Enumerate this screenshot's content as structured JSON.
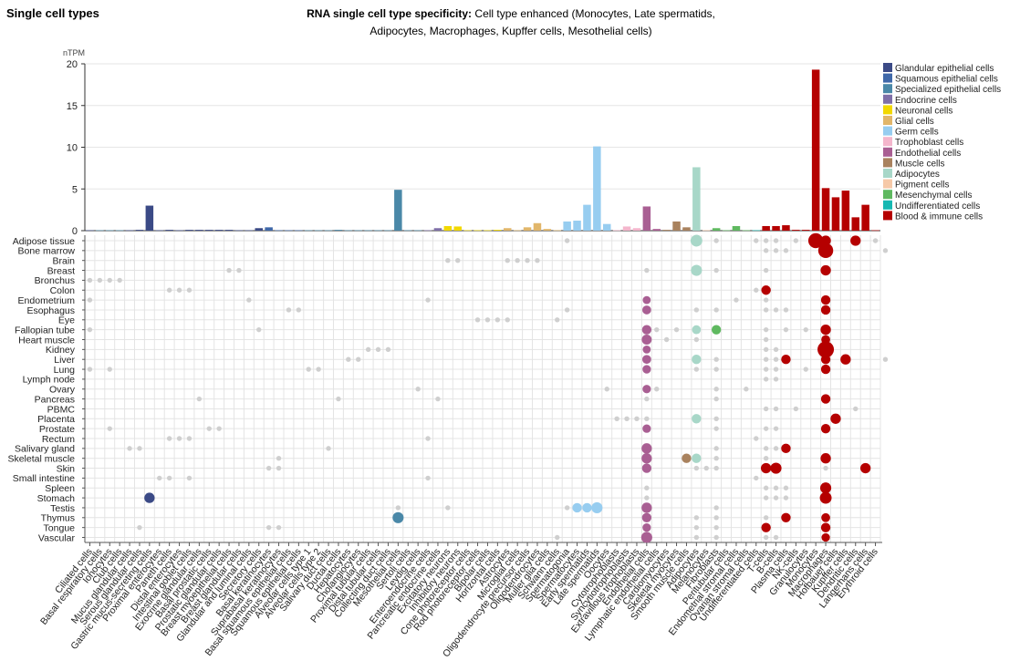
{
  "section_title": "Single cell types",
  "chart_title_bold": "RNA single cell type specificity:",
  "chart_title_rest": " Cell type enhanced (Monocytes, Late spermatids, Adipocytes, Macrophages, Kupffer cells, Mesothelial cells)",
  "chart_data": {
    "type": "bar",
    "ylabel": "nTPM",
    "ylim": [
      0,
      20
    ],
    "yticks": [
      0,
      5,
      10,
      15,
      20
    ],
    "grid": true,
    "legend_position": "right",
    "legend": [
      {
        "name": "Glandular epithelial cells",
        "color": "#3b4a86"
      },
      {
        "name": "Squamous epithelial cells",
        "color": "#3f68a9"
      },
      {
        "name": "Specialized epithelial cells",
        "color": "#4a88a8"
      },
      {
        "name": "Endocrine cells",
        "color": "#7f6fa8"
      },
      {
        "name": "Neuronal cells",
        "color": "#f2d800"
      },
      {
        "name": "Glial cells",
        "color": "#e1b66a"
      },
      {
        "name": "Germ cells",
        "color": "#97cdf0"
      },
      {
        "name": "Trophoblast cells",
        "color": "#f4b6cc"
      },
      {
        "name": "Endothelial cells",
        "color": "#a95f93"
      },
      {
        "name": "Muscle cells",
        "color": "#a9825e"
      },
      {
        "name": "Adipocytes",
        "color": "#a8d7c8"
      },
      {
        "name": "Pigment cells",
        "color": "#f6c9a8"
      },
      {
        "name": "Mesenchymal cells",
        "color": "#5fb960"
      },
      {
        "name": "Undifferentiated cells",
        "color": "#16b8b2"
      },
      {
        "name": "Blood & immune cells",
        "color": "#b50000"
      }
    ],
    "categories": [
      "Ciliated cells",
      "Basal respiratory cells",
      "Ionocytes",
      "Club cells",
      "Mucus glandular cells",
      "Serous glandular cells",
      "Gastric mucus-secreting cells",
      "Proximal enterocytes",
      "Paneth cells",
      "Distal enterocytes",
      "Intestinal goblet cells",
      "Exocrine glandular cells",
      "Basal prostatic cells",
      "Prostatic glandular cells",
      "Breast myoepithelial cells",
      "Breast glandular cells",
      "Glandular and luminal cells",
      "Secretory cells",
      "Basal keratinocytes",
      "Suprabasal keratinocytes",
      "Basal squamous epithelial cells",
      "Squamous epithelial cells",
      "Alveolar cells type 1",
      "Alveolar cells type 2",
      "Salivary duct cells",
      "Ductal cells",
      "Hepatocytes",
      "Cholangiocytes",
      "Proximal tubular cells",
      "Distal tubular cells",
      "Collecting duct cells",
      "Mesothelial cells",
      "Sertoli cells",
      "Leydig cells",
      "Enteroendocrine cells",
      "Pancreatic endocrine cells",
      "Excitatory neurons",
      "Inhibitory neurons",
      "Cone photoreceptor cells",
      "Rod photoreceptor cells",
      "Bipolar cells",
      "Horizontal cells",
      "Astrocytes",
      "Microglial cells",
      "Oligodendrocyte precursor cells",
      "Oligodendrocytes",
      "Muller glia cells",
      "Schwann cells",
      "Spermatogonia",
      "Spermatocytes",
      "Early spermatids",
      "Late spermatids",
      "Oocytes",
      "Cytotrophoblasts",
      "Syncytiotrophoblasts",
      "Extravillous trophoblasts",
      "Endothelial cells",
      "Lymphatic endothelial cells",
      "Cardiomyocytes",
      "Skeletal myocytes",
      "Smooth muscle cells",
      "Adipocytes",
      "Melanocytes",
      "Fibroblasts",
      "Peritubular cells",
      "Endometrial stromal cells",
      "Ovarian stromal cells",
      "Undifferentiated cells",
      "T-cells",
      "B-cells",
      "Plasma cells",
      "NK-cells",
      "Granulocytes",
      "Monocytes",
      "Macrophages",
      "Hofbauer cells",
      "Kupffer cells",
      "Dendritic cells",
      "Langerhans cells",
      "Erythroid cells"
    ],
    "category_groups": [
      "Glandular epithelial cells",
      "Specialized epithelial cells",
      "Specialized epithelial cells",
      "Specialized epithelial cells",
      "Glandular epithelial cells",
      "Glandular epithelial cells",
      "Glandular epithelial cells",
      "Glandular epithelial cells",
      "Glandular epithelial cells",
      "Glandular epithelial cells",
      "Glandular epithelial cells",
      "Glandular epithelial cells",
      "Glandular epithelial cells",
      "Glandular epithelial cells",
      "Glandular epithelial cells",
      "Glandular epithelial cells",
      "Glandular epithelial cells",
      "Glandular epithelial cells",
      "Squamous epithelial cells",
      "Squamous epithelial cells",
      "Squamous epithelial cells",
      "Squamous epithelial cells",
      "Specialized epithelial cells",
      "Specialized epithelial cells",
      "Specialized epithelial cells",
      "Specialized epithelial cells",
      "Specialized epithelial cells",
      "Specialized epithelial cells",
      "Specialized epithelial cells",
      "Specialized epithelial cells",
      "Specialized epithelial cells",
      "Specialized epithelial cells",
      "Specialized epithelial cells",
      "Specialized epithelial cells",
      "Endocrine cells",
      "Endocrine cells",
      "Neuronal cells",
      "Neuronal cells",
      "Neuronal cells",
      "Neuronal cells",
      "Neuronal cells",
      "Neuronal cells",
      "Glial cells",
      "Glial cells",
      "Glial cells",
      "Glial cells",
      "Glial cells",
      "Glial cells",
      "Germ cells",
      "Germ cells",
      "Germ cells",
      "Germ cells",
      "Germ cells",
      "Trophoblast cells",
      "Trophoblast cells",
      "Trophoblast cells",
      "Endothelial cells",
      "Endothelial cells",
      "Muscle cells",
      "Muscle cells",
      "Muscle cells",
      "Adipocytes",
      "Pigment cells",
      "Mesenchymal cells",
      "Mesenchymal cells",
      "Mesenchymal cells",
      "Mesenchymal cells",
      "Undifferentiated cells",
      "Blood & immune cells",
      "Blood & immune cells",
      "Blood & immune cells",
      "Blood & immune cells",
      "Blood & immune cells",
      "Blood & immune cells",
      "Blood & immune cells",
      "Blood & immune cells",
      "Blood & immune cells",
      "Blood & immune cells",
      "Blood & immune cells",
      "Blood & immune cells"
    ],
    "values": [
      0.05,
      0.05,
      0.05,
      0.05,
      0.05,
      0.1,
      3,
      0.05,
      0.1,
      0.05,
      0.1,
      0.1,
      0.1,
      0.1,
      0.1,
      0.05,
      0.05,
      0.3,
      0.4,
      0.05,
      0.05,
      0.05,
      0.05,
      0.05,
      0.05,
      0.1,
      0.05,
      0.05,
      0.05,
      0.05,
      0.05,
      4.9,
      0.05,
      0.05,
      0.05,
      0.3,
      0.55,
      0.5,
      0.05,
      0.05,
      0.05,
      0.1,
      0.3,
      0.05,
      0.4,
      0.9,
      0.2,
      0.05,
      1.1,
      1.2,
      3.1,
      10.1,
      0.8,
      0.05,
      0.5,
      0.3,
      2.9,
      0.2,
      0.1,
      1.1,
      0.4,
      7.6,
      0.05,
      0.3,
      0.05,
      0.55,
      0.05,
      0.05,
      0.55,
      0.55,
      0.65,
      0.1,
      0.1,
      19.3,
      5.1,
      4,
      4.8,
      1.6,
      3.1,
      0.05
    ],
    "tissues": [
      "Adipose tissue",
      "Bone marrow",
      "Brain",
      "Breast",
      "Bronchus",
      "Colon",
      "Endometrium",
      "Esophagus",
      "Eye",
      "Fallopian tube",
      "Heart muscle",
      "Kidney",
      "Liver",
      "Lung",
      "Lymph node",
      "Ovary",
      "Pancreas",
      "PBMC",
      "Placenta",
      "Prostate",
      "Rectum",
      "Salivary gland",
      "Skeletal muscle",
      "Skin",
      "Small intestine",
      "Spleen",
      "Stomach",
      "Testis",
      "Thymus",
      "Tongue",
      "Vascular"
    ],
    "dot_matrix": [
      [
        [
          48,
          0.3
        ],
        [
          61,
          3
        ],
        [
          63,
          0.3
        ],
        [
          67,
          0.3
        ],
        [
          68,
          0.3
        ],
        [
          69,
          0.3
        ],
        [
          71,
          0.3
        ],
        [
          73,
          6
        ],
        [
          74,
          2
        ],
        [
          77,
          2
        ],
        [
          79,
          0.3
        ]
      ],
      [
        [
          68,
          0.3
        ],
        [
          69,
          0.3
        ],
        [
          70,
          0.3
        ],
        [
          74,
          6
        ],
        [
          80,
          0.3
        ]
      ],
      [
        [
          36,
          0.3
        ],
        [
          37,
          0.3
        ],
        [
          42,
          0.3
        ],
        [
          43,
          0.3
        ],
        [
          44,
          0.3
        ],
        [
          45,
          0.3
        ]
      ],
      [
        [
          14,
          0.3
        ],
        [
          15,
          0.3
        ],
        [
          56,
          0.3
        ],
        [
          61,
          2.5
        ],
        [
          63,
          0.3
        ],
        [
          68,
          0.3
        ],
        [
          74,
          2
        ]
      ],
      [
        [
          0,
          0.3
        ],
        [
          1,
          0.3
        ],
        [
          2,
          0.3
        ],
        [
          3,
          0.3
        ]
      ],
      [
        [
          8,
          0.3
        ],
        [
          9,
          0.3
        ],
        [
          10,
          0.3
        ],
        [
          67,
          0.3
        ],
        [
          68,
          1.5
        ]
      ],
      [
        [
          0,
          0.3
        ],
        [
          16,
          0.3
        ],
        [
          34,
          0.3
        ],
        [
          56,
          0.8
        ],
        [
          65,
          0.3
        ],
        [
          68,
          0.3
        ],
        [
          74,
          1.5
        ]
      ],
      [
        [
          20,
          0.3
        ],
        [
          21,
          0.3
        ],
        [
          48,
          0.3
        ],
        [
          56,
          1.2
        ],
        [
          61,
          0.3
        ],
        [
          63,
          0.3
        ],
        [
          68,
          0.3
        ],
        [
          69,
          0.3
        ],
        [
          70,
          0.3
        ],
        [
          74,
          1.5
        ]
      ],
      [
        [
          39,
          0.3
        ],
        [
          40,
          0.3
        ],
        [
          41,
          0.3
        ],
        [
          42,
          0.3
        ],
        [
          47,
          0.3
        ]
      ],
      [
        [
          0,
          0.3
        ],
        [
          17,
          0.3
        ],
        [
          56,
          1.5
        ],
        [
          57,
          0.3
        ],
        [
          59,
          0.3
        ],
        [
          61,
          1.2
        ],
        [
          63,
          1.5
        ],
        [
          68,
          0.3
        ],
        [
          70,
          0.3
        ],
        [
          72,
          0.3
        ],
        [
          74,
          2
        ]
      ],
      [
        [
          56,
          1.8
        ],
        [
          58,
          0.3
        ],
        [
          61,
          0.3
        ],
        [
          68,
          0.3
        ],
        [
          74,
          1.2
        ]
      ],
      [
        [
          28,
          0.3
        ],
        [
          29,
          0.3
        ],
        [
          30,
          0.3
        ],
        [
          56,
          0.8
        ],
        [
          68,
          0.3
        ],
        [
          69,
          0.3
        ],
        [
          74,
          8
        ]
      ],
      [
        [
          26,
          0.3
        ],
        [
          27,
          0.3
        ],
        [
          56,
          1.2
        ],
        [
          61,
          1.5
        ],
        [
          63,
          0.3
        ],
        [
          68,
          0.3
        ],
        [
          69,
          0.3
        ],
        [
          70,
          1.5
        ],
        [
          74,
          1.5
        ],
        [
          76,
          2
        ],
        [
          80,
          0.3
        ]
      ],
      [
        [
          0,
          0.3
        ],
        [
          2,
          0.3
        ],
        [
          22,
          0.3
        ],
        [
          23,
          0.3
        ],
        [
          56,
          1
        ],
        [
          61,
          0.3
        ],
        [
          63,
          0.3
        ],
        [
          68,
          0.3
        ],
        [
          69,
          0.3
        ],
        [
          72,
          0.3
        ],
        [
          74,
          1.5
        ]
      ],
      [
        [
          68,
          0.3
        ],
        [
          69,
          0.3
        ]
      ],
      [
        [
          33,
          0.3
        ],
        [
          52,
          0.3
        ],
        [
          56,
          1
        ],
        [
          57,
          0.3
        ],
        [
          63,
          0.3
        ],
        [
          66,
          0.3
        ]
      ],
      [
        [
          11,
          0.3
        ],
        [
          25,
          0.3
        ],
        [
          35,
          0.3
        ],
        [
          56,
          0.3
        ],
        [
          63,
          0.3
        ],
        [
          74,
          1.5
        ]
      ],
      [
        [
          68,
          0.3
        ],
        [
          69,
          0.3
        ],
        [
          71,
          0.3
        ],
        [
          77,
          0.3
        ]
      ],
      [
        [
          53,
          0.3
        ],
        [
          54,
          0.3
        ],
        [
          55,
          0.3
        ],
        [
          56,
          0.3
        ],
        [
          61,
          1.5
        ],
        [
          63,
          0.3
        ],
        [
          75,
          2
        ]
      ],
      [
        [
          2,
          0.3
        ],
        [
          12,
          0.3
        ],
        [
          13,
          0.3
        ],
        [
          56,
          1
        ],
        [
          63,
          0.3
        ],
        [
          68,
          0.3
        ],
        [
          69,
          0.3
        ],
        [
          74,
          1.5
        ]
      ],
      [
        [
          8,
          0.3
        ],
        [
          9,
          0.3
        ],
        [
          10,
          0.3
        ],
        [
          34,
          0.3
        ],
        [
          67,
          0.3
        ]
      ],
      [
        [
          4,
          0.3
        ],
        [
          5,
          0.3
        ],
        [
          24,
          0.3
        ],
        [
          56,
          2
        ],
        [
          63,
          0.3
        ],
        [
          68,
          0.3
        ],
        [
          69,
          0.3
        ],
        [
          70,
          1.5
        ]
      ],
      [
        [
          19,
          0.3
        ],
        [
          56,
          2
        ],
        [
          60,
          1.5
        ],
        [
          61,
          1.5
        ],
        [
          63,
          0.3
        ],
        [
          68,
          0.3
        ],
        [
          74,
          2
        ]
      ],
      [
        [
          18,
          0.3
        ],
        [
          19,
          0.3
        ],
        [
          56,
          1.5
        ],
        [
          61,
          0.3
        ],
        [
          62,
          0.3
        ],
        [
          63,
          0.3
        ],
        [
          68,
          2
        ],
        [
          69,
          2.5
        ],
        [
          74,
          0.3
        ],
        [
          78,
          2
        ]
      ],
      [
        [
          7,
          0.3
        ],
        [
          8,
          0.3
        ],
        [
          10,
          0.3
        ],
        [
          34,
          0.3
        ],
        [
          67,
          0.3
        ]
      ],
      [
        [
          56,
          0.3
        ],
        [
          68,
          0.3
        ],
        [
          69,
          0.3
        ],
        [
          70,
          0.3
        ],
        [
          74,
          2.5
        ]
      ],
      [
        [
          6,
          2
        ],
        [
          56,
          0.3
        ],
        [
          68,
          0.3
        ],
        [
          69,
          0.3
        ],
        [
          70,
          0.3
        ],
        [
          74,
          3
        ]
      ],
      [
        [
          31,
          0.3
        ],
        [
          36,
          0.3
        ],
        [
          48,
          0.3
        ],
        [
          49,
          1.5
        ],
        [
          50,
          1.5
        ],
        [
          51,
          2.5
        ],
        [
          56,
          2
        ],
        [
          63,
          0.3
        ]
      ],
      [
        [
          31,
          2.5
        ],
        [
          56,
          1.5
        ],
        [
          61,
          0.3
        ],
        [
          63,
          0.3
        ],
        [
          68,
          0.3
        ],
        [
          70,
          1.5
        ],
        [
          74,
          1.2
        ]
      ],
      [
        [
          5,
          0.3
        ],
        [
          18,
          0.3
        ],
        [
          19,
          0.3
        ],
        [
          56,
          1
        ],
        [
          61,
          0.3
        ],
        [
          63,
          0.3
        ],
        [
          68,
          1.5
        ],
        [
          74,
          1.5
        ]
      ],
      [
        [
          47,
          0.3
        ],
        [
          56,
          2.5
        ],
        [
          61,
          0.3
        ],
        [
          63,
          0.3
        ],
        [
          68,
          0.3
        ],
        [
          69,
          0.3
        ],
        [
          74,
          1
        ]
      ]
    ]
  }
}
